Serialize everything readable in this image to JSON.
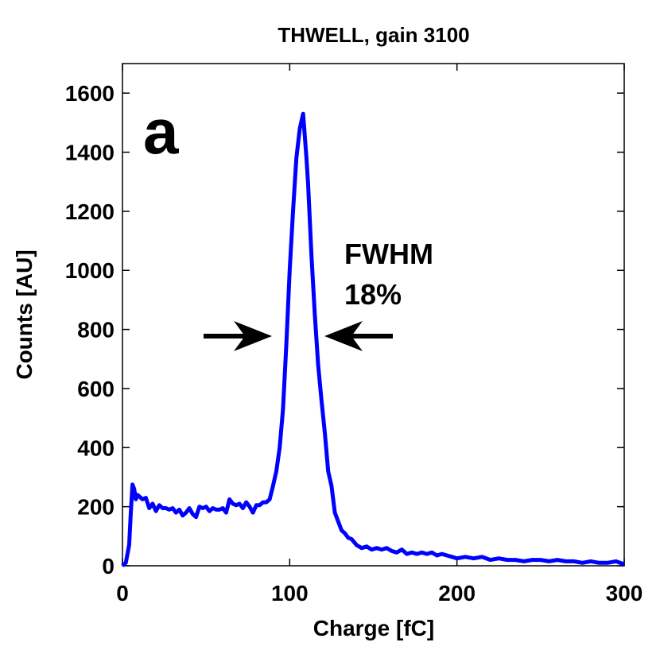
{
  "chart_data": {
    "type": "line",
    "title": "THWELL, gain 3100",
    "xlabel": "Charge [fC]",
    "ylabel": "Counts [AU]",
    "annotations": [
      "a",
      "FWHM",
      "18%"
    ],
    "color": "#0000ff",
    "x": [
      0,
      2,
      4,
      5,
      6,
      7,
      8,
      9,
      10,
      12,
      14,
      16,
      18,
      20,
      22,
      24,
      26,
      28,
      30,
      32,
      34,
      36,
      38,
      40,
      42,
      44,
      46,
      48,
      50,
      52,
      54,
      56,
      58,
      60,
      62,
      64,
      66,
      68,
      70,
      72,
      74,
      76,
      78,
      80,
      82,
      84,
      86,
      88,
      90,
      92,
      94,
      96,
      98,
      100,
      102,
      104,
      106,
      108,
      110,
      111,
      113,
      115,
      117,
      119,
      121,
      123,
      125,
      127,
      129,
      131,
      133,
      135,
      137,
      140,
      143,
      146,
      149,
      152,
      155,
      158,
      161,
      164,
      167,
      170,
      173,
      176,
      179,
      182,
      185,
      188,
      191,
      194,
      197,
      200,
      205,
      210,
      215,
      220,
      225,
      230,
      235,
      240,
      245,
      250,
      255,
      260,
      265,
      270,
      275,
      280,
      285,
      290,
      295,
      300
    ],
    "values": [
      0,
      10,
      70,
      180,
      275,
      260,
      225,
      240,
      235,
      225,
      230,
      195,
      210,
      185,
      205,
      195,
      195,
      190,
      195,
      180,
      190,
      170,
      180,
      195,
      175,
      165,
      200,
      195,
      200,
      185,
      195,
      190,
      190,
      195,
      180,
      225,
      210,
      205,
      210,
      195,
      215,
      200,
      180,
      205,
      205,
      215,
      215,
      225,
      270,
      320,
      400,
      530,
      750,
      1000,
      1200,
      1380,
      1480,
      1530,
      1380,
      1290,
      1050,
      850,
      680,
      560,
      450,
      320,
      270,
      180,
      150,
      120,
      110,
      95,
      90,
      70,
      60,
      65,
      55,
      60,
      55,
      60,
      50,
      45,
      55,
      40,
      45,
      40,
      45,
      40,
      45,
      35,
      40,
      35,
      30,
      25,
      30,
      25,
      30,
      20,
      25,
      20,
      20,
      15,
      20,
      20,
      15,
      20,
      15,
      15,
      10,
      15,
      10,
      10,
      15,
      5
    ],
    "xlim": [
      0,
      300
    ],
    "xticks": [
      0,
      100,
      200,
      300
    ],
    "ylim": [
      0,
      1700
    ],
    "yticks": [
      0,
      200,
      400,
      600,
      800,
      1000,
      1200,
      1400,
      1600
    ]
  }
}
